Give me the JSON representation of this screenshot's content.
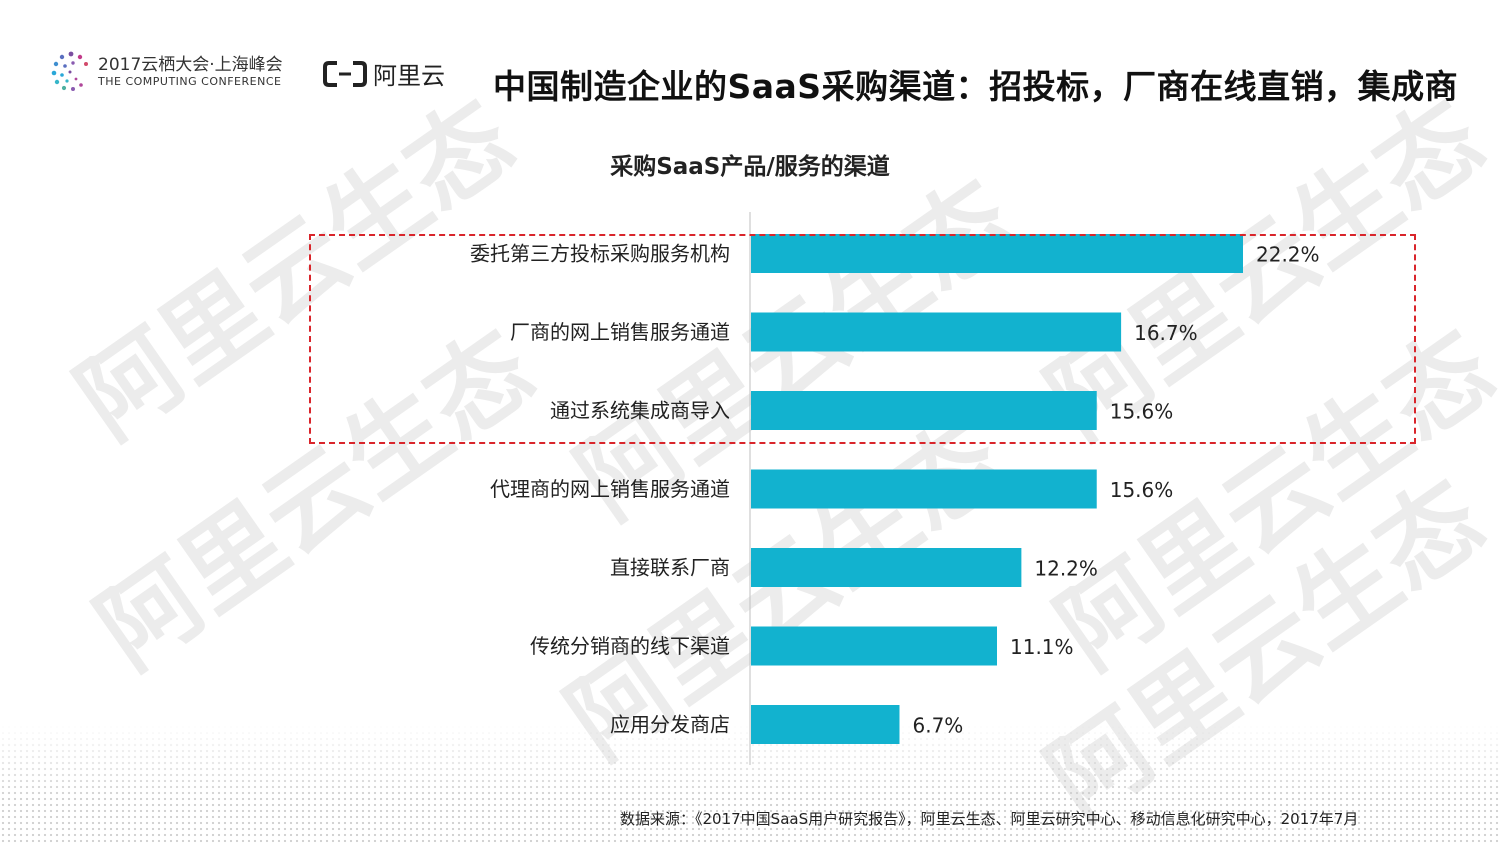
{
  "header": {
    "conference_line1": "2017云栖大会·上海峰会",
    "conference_line2": "THE COMPUTING CONFERENCE",
    "brand": "阿里云",
    "title": "中国制造企业的SaaS采购渠道：招投标，厂商在线直销，集成商"
  },
  "watermark_text": "阿里云生态",
  "chart_data": {
    "type": "bar",
    "orientation": "horizontal",
    "title": "采购SaaS产品/服务的渠道",
    "categories": [
      "委托第三方投标采购服务机构",
      "厂商的网上销售服务通道",
      "通过系统集成商导入",
      "代理商的网上销售服务通道",
      "直接联系厂商",
      "传统分销商的线下渠道",
      "应用分发商店"
    ],
    "values": [
      22.2,
      16.7,
      15.6,
      15.6,
      12.2,
      11.1,
      6.7
    ],
    "value_labels": [
      "22.2%",
      "16.7%",
      "15.6%",
      "15.6%",
      "12.2%",
      "11.1%",
      "6.7%"
    ],
    "unit": "%",
    "xlim": [
      0,
      22.2
    ],
    "bar_color": "#12b2cf",
    "highlight_color": "#d9252b",
    "highlighted_categories": 3
  },
  "footer": {
    "source": "数据来源：《2017中国SaaS用户研究报告》，阿里云生态、阿里云研究中心、移动信息化研究中心，2017年7月"
  }
}
